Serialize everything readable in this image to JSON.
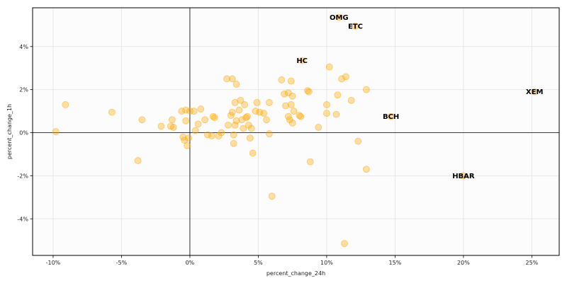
{
  "chart_data": {
    "type": "scatter",
    "title": "",
    "xlabel": "percent_change_24h",
    "ylabel": "percent_change_1h",
    "xlim": [
      -11.5,
      27.0
    ],
    "ylim": [
      -5.7,
      5.8
    ],
    "x_ticks": [
      -10,
      -5,
      0,
      5,
      10,
      15,
      20,
      25
    ],
    "x_tick_labels": [
      "-10%",
      "-5%",
      "0%",
      "5%",
      "10%",
      "15%",
      "20%",
      "25%"
    ],
    "y_ticks": [
      -4,
      -2,
      0,
      2,
      4
    ],
    "y_tick_labels": [
      "-4%",
      "-2%",
      "0%",
      "2%",
      "4%"
    ],
    "grid": true,
    "marker_color": "#ffa500",
    "points": [
      {
        "x": -9.8,
        "y": 0.05
      },
      {
        "x": -9.1,
        "y": 1.3
      },
      {
        "x": -5.7,
        "y": 0.95
      },
      {
        "x": -3.8,
        "y": -1.3
      },
      {
        "x": -3.5,
        "y": 0.6
      },
      {
        "x": -2.1,
        "y": 0.3
      },
      {
        "x": -1.4,
        "y": 0.3
      },
      {
        "x": -1.3,
        "y": 0.6
      },
      {
        "x": -1.2,
        "y": 0.25
      },
      {
        "x": -0.6,
        "y": 1.0
      },
      {
        "x": -0.5,
        "y": -0.2
      },
      {
        "x": -0.4,
        "y": -0.35
      },
      {
        "x": -0.3,
        "y": 1.05
      },
      {
        "x": -0.3,
        "y": 0.55
      },
      {
        "x": -0.2,
        "y": -0.6
      },
      {
        "x": -0.1,
        "y": -0.25
      },
      {
        "x": 0.0,
        "y": 1.0
      },
      {
        "x": 0.3,
        "y": 1.0
      },
      {
        "x": 0.4,
        "y": 0.1
      },
      {
        "x": 0.6,
        "y": 0.4
      },
      {
        "x": 0.8,
        "y": 1.1
      },
      {
        "x": 1.1,
        "y": 0.6
      },
      {
        "x": 1.3,
        "y": -0.1
      },
      {
        "x": 1.6,
        "y": -0.15
      },
      {
        "x": 1.7,
        "y": 0.75
      },
      {
        "x": 1.8,
        "y": 0.7
      },
      {
        "x": 2.1,
        "y": -0.15
      },
      {
        "x": 2.3,
        "y": 0.0
      },
      {
        "x": 2.7,
        "y": 2.5
      },
      {
        "x": 2.8,
        "y": 0.35
      },
      {
        "x": 3.0,
        "y": 0.8
      },
      {
        "x": 3.1,
        "y": 0.95
      },
      {
        "x": 3.1,
        "y": 2.5
      },
      {
        "x": 3.2,
        "y": -0.1
      },
      {
        "x": 3.2,
        "y": -0.5
      },
      {
        "x": 3.3,
        "y": 1.4
      },
      {
        "x": 3.3,
        "y": 0.35
      },
      {
        "x": 3.4,
        "y": 2.25
      },
      {
        "x": 3.4,
        "y": 0.55
      },
      {
        "x": 3.6,
        "y": 1.05
      },
      {
        "x": 3.7,
        "y": 1.5
      },
      {
        "x": 3.8,
        "y": 0.6
      },
      {
        "x": 3.9,
        "y": 0.2
      },
      {
        "x": 4.0,
        "y": 1.3
      },
      {
        "x": 4.1,
        "y": 0.7
      },
      {
        "x": 4.2,
        "y": 0.75
      },
      {
        "x": 4.3,
        "y": 0.35
      },
      {
        "x": 4.4,
        "y": -0.25
      },
      {
        "x": 4.5,
        "y": 0.2
      },
      {
        "x": 4.6,
        "y": -0.95
      },
      {
        "x": 4.8,
        "y": 1.0
      },
      {
        "x": 4.9,
        "y": 1.4
      },
      {
        "x": 5.1,
        "y": 0.95
      },
      {
        "x": 5.4,
        "y": 0.9
      },
      {
        "x": 5.6,
        "y": 0.6
      },
      {
        "x": 5.8,
        "y": -0.05
      },
      {
        "x": 5.8,
        "y": 1.4
      },
      {
        "x": 6.0,
        "y": -2.95
      },
      {
        "x": 6.7,
        "y": 2.45
      },
      {
        "x": 6.9,
        "y": 1.8
      },
      {
        "x": 7.0,
        "y": 1.25
      },
      {
        "x": 7.2,
        "y": 1.85
      },
      {
        "x": 7.2,
        "y": 0.75
      },
      {
        "x": 7.3,
        "y": 0.6
      },
      {
        "x": 7.4,
        "y": 1.3
      },
      {
        "x": 7.4,
        "y": 2.4
      },
      {
        "x": 7.5,
        "y": 1.7
      },
      {
        "x": 7.5,
        "y": 0.45
      },
      {
        "x": 7.6,
        "y": 1.0
      },
      {
        "x": 8.0,
        "y": 0.8
      },
      {
        "x": 8.1,
        "y": 0.75
      },
      {
        "x": 8.6,
        "y": 1.95
      },
      {
        "x": 8.7,
        "y": 1.9
      },
      {
        "x": 8.8,
        "y": -1.35
      },
      {
        "x": 9.4,
        "y": 0.25
      },
      {
        "x": 10.0,
        "y": 0.9
      },
      {
        "x": 10.0,
        "y": 1.3
      },
      {
        "x": 10.2,
        "y": 3.05
      },
      {
        "x": 10.7,
        "y": 0.85
      },
      {
        "x": 10.8,
        "y": 1.75
      },
      {
        "x": 11.1,
        "y": 2.5
      },
      {
        "x": 11.3,
        "y": -5.15
      },
      {
        "x": 11.4,
        "y": 2.6
      },
      {
        "x": 11.8,
        "y": 1.5
      },
      {
        "x": 12.3,
        "y": -0.4
      },
      {
        "x": 12.9,
        "y": 2.0
      },
      {
        "x": 12.9,
        "y": -1.7
      }
    ],
    "annotations": [
      {
        "label": "OMG",
        "x": 10.9,
        "y": 5.35
      },
      {
        "label": "ETC",
        "x": 12.1,
        "y": 4.95
      },
      {
        "label": "HC",
        "x": 8.2,
        "y": 3.35
      },
      {
        "label": "XEM",
        "x": 25.2,
        "y": 1.9
      },
      {
        "label": "BCH",
        "x": 14.7,
        "y": 0.75
      },
      {
        "label": "HBAR",
        "x": 20.0,
        "y": -2.0
      }
    ]
  }
}
